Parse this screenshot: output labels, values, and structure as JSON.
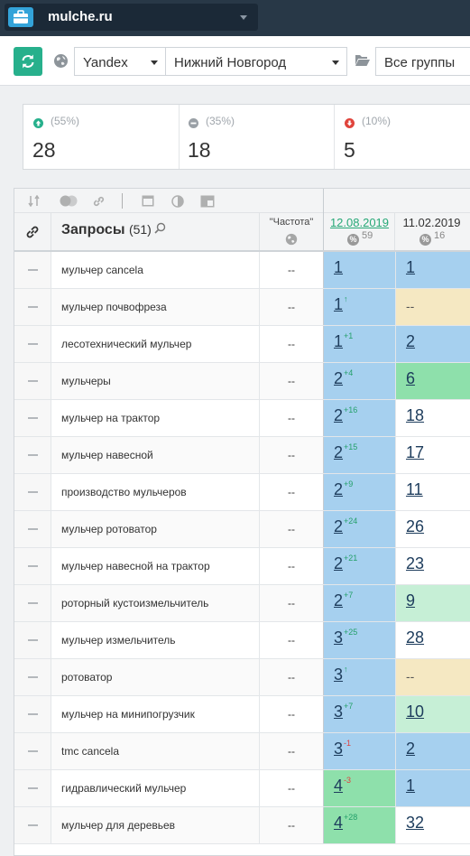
{
  "topbar": {
    "project_name": "mulche.ru"
  },
  "toolbar": {
    "search_engine": "Yandex",
    "region": "Нижний Новгород",
    "groups": "Все группы"
  },
  "stats": [
    {
      "direction": "up",
      "percent": "(55%)",
      "count": "28",
      "color": "#27b08c"
    },
    {
      "direction": "same",
      "percent": "(35%)",
      "count": "18",
      "color": "#9aa0a6"
    },
    {
      "direction": "down",
      "percent": "(10%)",
      "count": "5",
      "color": "#e0443c"
    }
  ],
  "table": {
    "queries_header": "Запросы",
    "queries_count": "(51)",
    "frequency_header": "\"Частота\"",
    "dates": [
      {
        "label": "12.08.2019",
        "badge": "%",
        "sup": "59"
      },
      {
        "label": "11.02.2019",
        "badge": "%",
        "sup": "16"
      }
    ],
    "colors": {
      "blue": "#a6d0ef",
      "green": "#8ee0ab",
      "lightgreen": "#c6efd6",
      "beige": "#f5e8c2",
      "white": "#ffffff"
    },
    "rows": [
      {
        "query": "мульчер cancela",
        "freq": "--",
        "p1": "1",
        "c1": "",
        "d1": "",
        "bg1": "blue",
        "p2": "1",
        "bg2": "blue"
      },
      {
        "query": "мульчер почвофреза",
        "freq": "--",
        "p1": "1",
        "c1": "↑",
        "d1": "up",
        "bg1": "blue",
        "p2": "--",
        "bg2": "beige"
      },
      {
        "query": "лесотехнический мульчер",
        "freq": "--",
        "p1": "1",
        "c1": "+1",
        "d1": "up",
        "bg1": "blue",
        "p2": "2",
        "bg2": "blue"
      },
      {
        "query": "мульчеры",
        "freq": "--",
        "p1": "2",
        "c1": "+4",
        "d1": "up",
        "bg1": "blue",
        "p2": "6",
        "bg2": "green"
      },
      {
        "query": "мульчер на трактор",
        "freq": "--",
        "p1": "2",
        "c1": "+16",
        "d1": "up",
        "bg1": "blue",
        "p2": "18",
        "bg2": "white"
      },
      {
        "query": "мульчер навесной",
        "freq": "--",
        "p1": "2",
        "c1": "+15",
        "d1": "up",
        "bg1": "blue",
        "p2": "17",
        "bg2": "white"
      },
      {
        "query": "производство мульчеров",
        "freq": "--",
        "p1": "2",
        "c1": "+9",
        "d1": "up",
        "bg1": "blue",
        "p2": "11",
        "bg2": "white"
      },
      {
        "query": "мульчер ротоватор",
        "freq": "--",
        "p1": "2",
        "c1": "+24",
        "d1": "up",
        "bg1": "blue",
        "p2": "26",
        "bg2": "white"
      },
      {
        "query": "мульчер навесной на трактор",
        "freq": "--",
        "p1": "2",
        "c1": "+21",
        "d1": "up",
        "bg1": "blue",
        "p2": "23",
        "bg2": "white"
      },
      {
        "query": "роторный кустоизмельчитель",
        "freq": "--",
        "p1": "2",
        "c1": "+7",
        "d1": "up",
        "bg1": "blue",
        "p2": "9",
        "bg2": "lightgreen"
      },
      {
        "query": "мульчер измельчитель",
        "freq": "--",
        "p1": "3",
        "c1": "+25",
        "d1": "up",
        "bg1": "blue",
        "p2": "28",
        "bg2": "white"
      },
      {
        "query": "ротоватор",
        "freq": "--",
        "p1": "3",
        "c1": "↑",
        "d1": "up",
        "bg1": "blue",
        "p2": "--",
        "bg2": "beige"
      },
      {
        "query": "мульчер на минипогрузчик",
        "freq": "--",
        "p1": "3",
        "c1": "+7",
        "d1": "up",
        "bg1": "blue",
        "p2": "10",
        "bg2": "lightgreen"
      },
      {
        "query": "tmc cancela",
        "freq": "--",
        "p1": "3",
        "c1": "-1",
        "d1": "dn",
        "bg1": "blue",
        "p2": "2",
        "bg2": "blue"
      },
      {
        "query": "гидравлический мульчер",
        "freq": "--",
        "p1": "4",
        "c1": "-3",
        "d1": "dn",
        "bg1": "green",
        "p2": "1",
        "bg2": "blue"
      },
      {
        "query": "мульчер для деревьев",
        "freq": "--",
        "p1": "4",
        "c1": "+28",
        "d1": "up",
        "bg1": "green",
        "p2": "32",
        "bg2": "white"
      }
    ]
  }
}
